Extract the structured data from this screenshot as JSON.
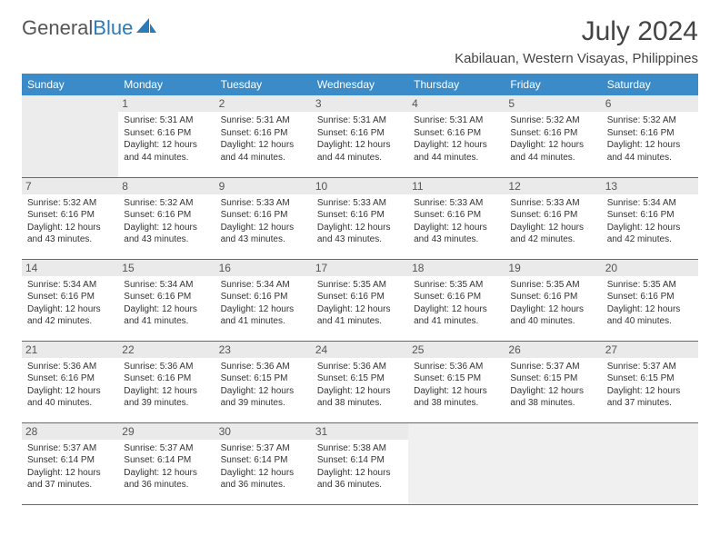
{
  "brand": {
    "name_part1": "General",
    "name_part2": "Blue",
    "icon_color": "#2b7bb9",
    "text_color_gray": "#555555",
    "text_color_blue": "#2b7bb9"
  },
  "header": {
    "title": "July 2024",
    "location": "Kabilauan, Western Visayas, Philippines"
  },
  "colors": {
    "header_row_bg": "#3b8bc8",
    "header_row_text": "#ffffff",
    "cell_border": "#2b7bb9",
    "daynum_bg": "#eaeaea",
    "empty_bg": "#ececec",
    "body_text": "#333333"
  },
  "typography": {
    "title_fontsize": 30,
    "location_fontsize": 15,
    "daynum_fontsize": 12,
    "detail_fontsize": 10,
    "header_cell_fontsize": 12
  },
  "calendar": {
    "day_labels": [
      "Sunday",
      "Monday",
      "Tuesday",
      "Wednesday",
      "Thursday",
      "Friday",
      "Saturday"
    ],
    "first_weekday_index": 1,
    "days_in_month": 31,
    "days": [
      {
        "n": 1,
        "sunrise": "5:31 AM",
        "sunset": "6:16 PM",
        "daylight": "12 hours and 44 minutes."
      },
      {
        "n": 2,
        "sunrise": "5:31 AM",
        "sunset": "6:16 PM",
        "daylight": "12 hours and 44 minutes."
      },
      {
        "n": 3,
        "sunrise": "5:31 AM",
        "sunset": "6:16 PM",
        "daylight": "12 hours and 44 minutes."
      },
      {
        "n": 4,
        "sunrise": "5:31 AM",
        "sunset": "6:16 PM",
        "daylight": "12 hours and 44 minutes."
      },
      {
        "n": 5,
        "sunrise": "5:32 AM",
        "sunset": "6:16 PM",
        "daylight": "12 hours and 44 minutes."
      },
      {
        "n": 6,
        "sunrise": "5:32 AM",
        "sunset": "6:16 PM",
        "daylight": "12 hours and 44 minutes."
      },
      {
        "n": 7,
        "sunrise": "5:32 AM",
        "sunset": "6:16 PM",
        "daylight": "12 hours and 43 minutes."
      },
      {
        "n": 8,
        "sunrise": "5:32 AM",
        "sunset": "6:16 PM",
        "daylight": "12 hours and 43 minutes."
      },
      {
        "n": 9,
        "sunrise": "5:33 AM",
        "sunset": "6:16 PM",
        "daylight": "12 hours and 43 minutes."
      },
      {
        "n": 10,
        "sunrise": "5:33 AM",
        "sunset": "6:16 PM",
        "daylight": "12 hours and 43 minutes."
      },
      {
        "n": 11,
        "sunrise": "5:33 AM",
        "sunset": "6:16 PM",
        "daylight": "12 hours and 43 minutes."
      },
      {
        "n": 12,
        "sunrise": "5:33 AM",
        "sunset": "6:16 PM",
        "daylight": "12 hours and 42 minutes."
      },
      {
        "n": 13,
        "sunrise": "5:34 AM",
        "sunset": "6:16 PM",
        "daylight": "12 hours and 42 minutes."
      },
      {
        "n": 14,
        "sunrise": "5:34 AM",
        "sunset": "6:16 PM",
        "daylight": "12 hours and 42 minutes."
      },
      {
        "n": 15,
        "sunrise": "5:34 AM",
        "sunset": "6:16 PM",
        "daylight": "12 hours and 41 minutes."
      },
      {
        "n": 16,
        "sunrise": "5:34 AM",
        "sunset": "6:16 PM",
        "daylight": "12 hours and 41 minutes."
      },
      {
        "n": 17,
        "sunrise": "5:35 AM",
        "sunset": "6:16 PM",
        "daylight": "12 hours and 41 minutes."
      },
      {
        "n": 18,
        "sunrise": "5:35 AM",
        "sunset": "6:16 PM",
        "daylight": "12 hours and 41 minutes."
      },
      {
        "n": 19,
        "sunrise": "5:35 AM",
        "sunset": "6:16 PM",
        "daylight": "12 hours and 40 minutes."
      },
      {
        "n": 20,
        "sunrise": "5:35 AM",
        "sunset": "6:16 PM",
        "daylight": "12 hours and 40 minutes."
      },
      {
        "n": 21,
        "sunrise": "5:36 AM",
        "sunset": "6:16 PM",
        "daylight": "12 hours and 40 minutes."
      },
      {
        "n": 22,
        "sunrise": "5:36 AM",
        "sunset": "6:16 PM",
        "daylight": "12 hours and 39 minutes."
      },
      {
        "n": 23,
        "sunrise": "5:36 AM",
        "sunset": "6:15 PM",
        "daylight": "12 hours and 39 minutes."
      },
      {
        "n": 24,
        "sunrise": "5:36 AM",
        "sunset": "6:15 PM",
        "daylight": "12 hours and 38 minutes."
      },
      {
        "n": 25,
        "sunrise": "5:36 AM",
        "sunset": "6:15 PM",
        "daylight": "12 hours and 38 minutes."
      },
      {
        "n": 26,
        "sunrise": "5:37 AM",
        "sunset": "6:15 PM",
        "daylight": "12 hours and 38 minutes."
      },
      {
        "n": 27,
        "sunrise": "5:37 AM",
        "sunset": "6:15 PM",
        "daylight": "12 hours and 37 minutes."
      },
      {
        "n": 28,
        "sunrise": "5:37 AM",
        "sunset": "6:14 PM",
        "daylight": "12 hours and 37 minutes."
      },
      {
        "n": 29,
        "sunrise": "5:37 AM",
        "sunset": "6:14 PM",
        "daylight": "12 hours and 36 minutes."
      },
      {
        "n": 30,
        "sunrise": "5:37 AM",
        "sunset": "6:14 PM",
        "daylight": "12 hours and 36 minutes."
      },
      {
        "n": 31,
        "sunrise": "5:38 AM",
        "sunset": "6:14 PM",
        "daylight": "12 hours and 36 minutes."
      }
    ],
    "labels": {
      "sunrise_prefix": "Sunrise: ",
      "sunset_prefix": "Sunset: ",
      "daylight_prefix": "Daylight: "
    }
  }
}
